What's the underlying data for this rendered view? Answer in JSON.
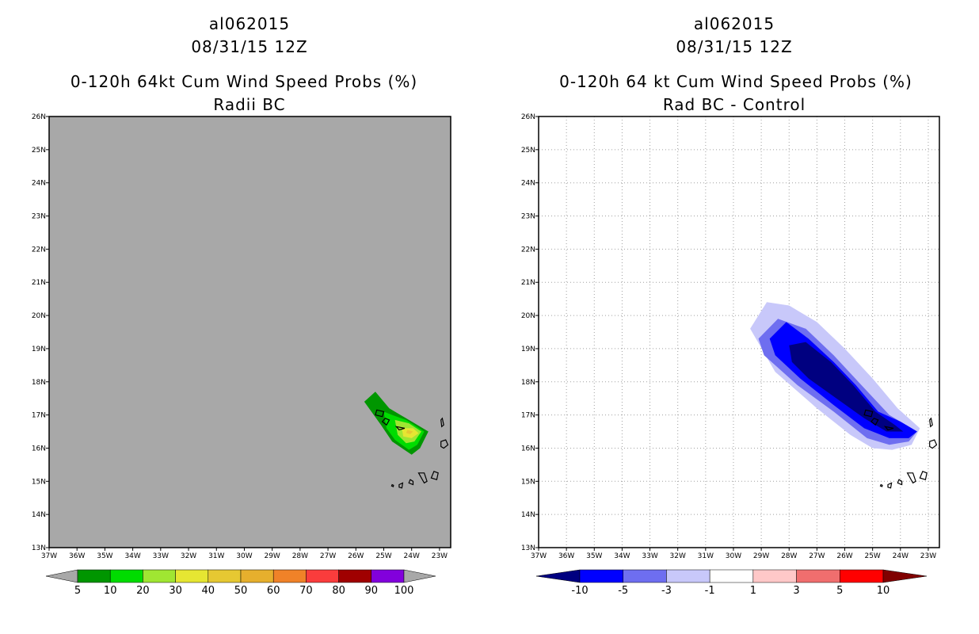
{
  "left_panel": {
    "title": [
      "al062015",
      "08/31/15 12Z",
      "0-120h 64kt Cum Wind Speed Probs (%)",
      "Radii BC"
    ]
  },
  "right_panel": {
    "title": [
      "al062015",
      "08/31/15 12Z",
      "0-120h 64 kt Cum Wind Speed Probs (%)",
      "Rad BC - Control"
    ]
  },
  "chart_data": [
    {
      "type": "heatmap",
      "title": "0-120h 64kt Cum Wind Speed Probs (%) Radii BC",
      "subtitle": "al062015 08/31/15 12Z",
      "xlabel": "",
      "ylabel": "",
      "x_ticks": [
        "37W",
        "36W",
        "35W",
        "34W",
        "33W",
        "32W",
        "31W",
        "30W",
        "29W",
        "28W",
        "27W",
        "26W",
        "25W",
        "24W",
        "23W"
      ],
      "y_ticks": [
        "13N",
        "14N",
        "15N",
        "16N",
        "17N",
        "18N",
        "19N",
        "20N",
        "21N",
        "22N",
        "23N",
        "24N",
        "25N",
        "26N"
      ],
      "xlim": [
        -37,
        -22.6
      ],
      "ylim": [
        13,
        26
      ],
      "background": "#a8a8a8",
      "grid": false,
      "contour_levels": [
        5,
        10,
        20,
        30,
        40,
        50,
        60,
        70,
        80,
        90,
        100
      ],
      "colorbar_labels": [
        "5",
        "10",
        "20",
        "30",
        "40",
        "50",
        "60",
        "70",
        "80",
        "90",
        "100"
      ],
      "colorbar_colors": [
        "#a8a8a8",
        "#009600",
        "#00dc00",
        "#a0e632",
        "#e6e632",
        "#e6c832",
        "#e6af2d",
        "#f08228",
        "#fa3c3c",
        "#a00000",
        "#8200dc",
        "#a8a8a8"
      ],
      "max_value": 40,
      "max_location": {
        "lon": -24.1,
        "lat": 16.5
      },
      "areas": [
        {
          "level": 5,
          "color": "#009600",
          "poly": [
            [
              -25.7,
              17.4
            ],
            [
              -25.3,
              17.7
            ],
            [
              -24.8,
              17.2
            ],
            [
              -24.2,
              16.9
            ],
            [
              -23.4,
              16.5
            ],
            [
              -23.7,
              16.0
            ],
            [
              -24.0,
              15.8
            ],
            [
              -24.7,
              16.2
            ],
            [
              -25.1,
              16.7
            ]
          ]
        },
        {
          "level": 10,
          "color": "#00dc00",
          "poly": [
            [
              -25.0,
              17.1
            ],
            [
              -24.7,
              17.0
            ],
            [
              -24.2,
              16.85
            ],
            [
              -23.55,
              16.5
            ],
            [
              -23.8,
              16.1
            ],
            [
              -24.1,
              15.95
            ],
            [
              -24.6,
              16.25
            ],
            [
              -24.9,
              16.6
            ]
          ]
        },
        {
          "level": 20,
          "color": "#a0e632",
          "poly": [
            [
              -24.6,
              16.85
            ],
            [
              -24.1,
              16.75
            ],
            [
              -23.65,
              16.5
            ],
            [
              -23.9,
              16.2
            ],
            [
              -24.2,
              16.15
            ],
            [
              -24.5,
              16.4
            ]
          ]
        },
        {
          "level": 30,
          "color": "#e6e632",
          "poly": [
            [
              -24.35,
              16.6
            ],
            [
              -23.95,
              16.6
            ],
            [
              -23.75,
              16.45
            ],
            [
              -24.0,
              16.3
            ],
            [
              -24.3,
              16.35
            ]
          ]
        },
        {
          "level": 40,
          "color": "#e6c832",
          "poly": [
            [
              -24.15,
              16.55
            ],
            [
              -23.95,
              16.5
            ],
            [
              -24.05,
              16.42
            ],
            [
              -24.2,
              16.46
            ]
          ]
        }
      ]
    },
    {
      "type": "heatmap",
      "title": "0-120h 64 kt Cum Wind Speed Probs (%) Rad BC - Control",
      "subtitle": "al062015 08/31/15 12Z",
      "xlabel": "",
      "ylabel": "",
      "x_ticks": [
        "37W",
        "36W",
        "35W",
        "34W",
        "33W",
        "32W",
        "31W",
        "30W",
        "29W",
        "28W",
        "27W",
        "26W",
        "25W",
        "24W",
        "23W"
      ],
      "y_ticks": [
        "13N",
        "14N",
        "15N",
        "16N",
        "17N",
        "18N",
        "19N",
        "20N",
        "21N",
        "22N",
        "23N",
        "24N",
        "25N",
        "26N"
      ],
      "xlim": [
        -37,
        -22.6
      ],
      "ylim": [
        13,
        26
      ],
      "background": "#ffffff",
      "grid": true,
      "contour_levels": [
        -10,
        -5,
        -3,
        -1,
        1,
        3,
        5,
        10
      ],
      "colorbar_labels": [
        "-10",
        "-5",
        "-3",
        "-1",
        "1",
        "3",
        "5",
        "10"
      ],
      "colorbar_colors": [
        "#000080",
        "#0000ff",
        "#6e6ef0",
        "#c8c8fa",
        "#ffffff",
        "#ffc8c8",
        "#f06e6e",
        "#ff0000",
        "#800000"
      ],
      "min_value": -10,
      "min_location": {
        "lon": -26.5,
        "lat": 18.0
      },
      "areas": [
        {
          "level": -1,
          "color": "#c8c8fa",
          "poly": [
            [
              -29.4,
              19.6
            ],
            [
              -28.8,
              20.4
            ],
            [
              -28.0,
              20.3
            ],
            [
              -27.0,
              19.8
            ],
            [
              -26.0,
              19.0
            ],
            [
              -25.0,
              18.1
            ],
            [
              -24.1,
              17.2
            ],
            [
              -23.3,
              16.6
            ],
            [
              -23.6,
              16.1
            ],
            [
              -24.3,
              15.95
            ],
            [
              -25.0,
              16.0
            ],
            [
              -25.8,
              16.4
            ],
            [
              -27.0,
              17.2
            ],
            [
              -28.5,
              18.3
            ]
          ]
        },
        {
          "level": -3,
          "color": "#6e6ef0",
          "poly": [
            [
              -29.1,
              19.3
            ],
            [
              -28.4,
              19.9
            ],
            [
              -27.4,
              19.6
            ],
            [
              -26.4,
              18.8
            ],
            [
              -25.4,
              17.9
            ],
            [
              -24.4,
              17.0
            ],
            [
              -23.4,
              16.5
            ],
            [
              -23.7,
              16.2
            ],
            [
              -24.4,
              16.1
            ],
            [
              -25.2,
              16.3
            ],
            [
              -26.4,
              17.1
            ],
            [
              -27.7,
              17.9
            ],
            [
              -28.9,
              18.8
            ]
          ]
        },
        {
          "level": -5,
          "color": "#0000ff",
          "poly": [
            [
              -28.7,
              19.3
            ],
            [
              -28.1,
              19.8
            ],
            [
              -27.3,
              19.3
            ],
            [
              -26.4,
              18.6
            ],
            [
              -25.6,
              17.9
            ],
            [
              -24.8,
              17.1
            ],
            [
              -24.0,
              16.8
            ],
            [
              -23.4,
              16.5
            ],
            [
              -23.7,
              16.3
            ],
            [
              -24.4,
              16.3
            ],
            [
              -25.3,
              16.6
            ],
            [
              -26.4,
              17.3
            ],
            [
              -27.6,
              18.1
            ],
            [
              -28.5,
              18.8
            ]
          ]
        },
        {
          "level": -10,
          "color": "#000080",
          "poly": [
            [
              -28.0,
              19.1
            ],
            [
              -27.4,
              19.2
            ],
            [
              -26.5,
              18.6
            ],
            [
              -25.7,
              17.9
            ],
            [
              -24.9,
              17.1
            ],
            [
              -24.2,
              16.7
            ],
            [
              -23.9,
              16.5
            ],
            [
              -24.5,
              16.5
            ],
            [
              -25.3,
              16.9
            ],
            [
              -26.3,
              17.5
            ],
            [
              -27.3,
              18.1
            ],
            [
              -27.9,
              18.6
            ]
          ]
        }
      ]
    }
  ]
}
